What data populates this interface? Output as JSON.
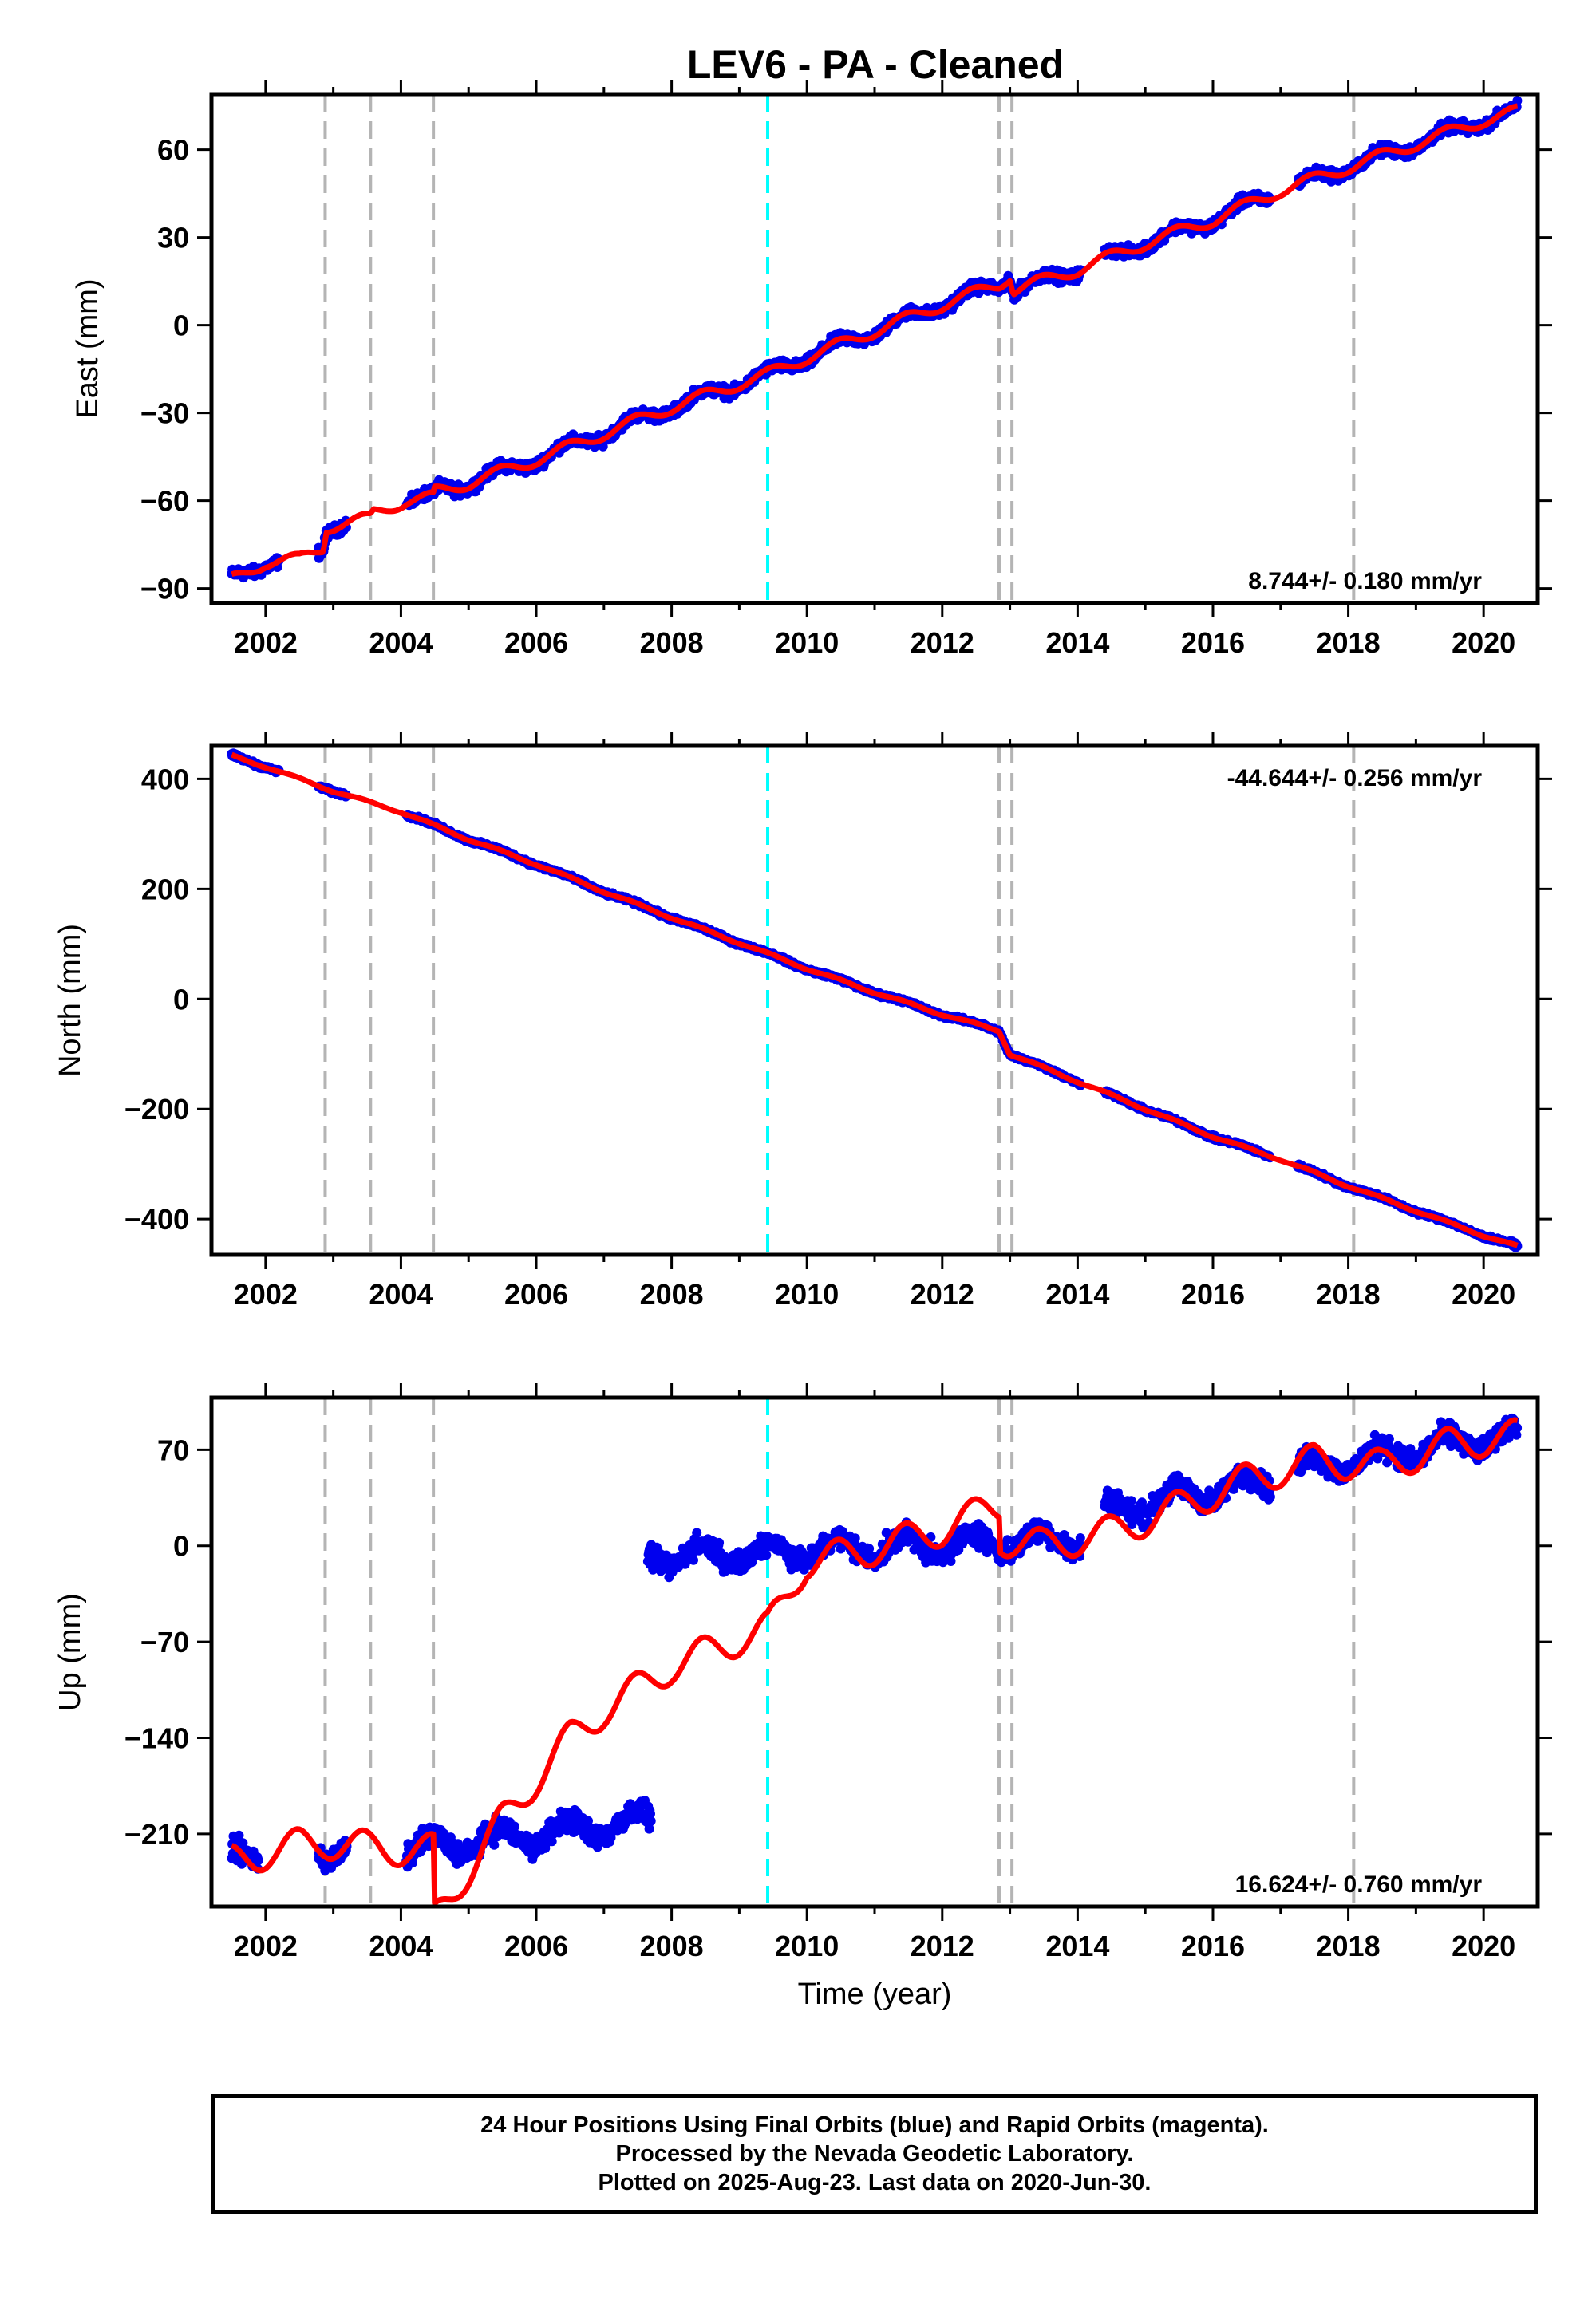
{
  "title": "LEV6  - PA - Cleaned",
  "colors": {
    "final_orbits": "#0000ee",
    "model_fit": "#ff0000",
    "offset_marker": "#b4b4b4",
    "equipment_marker": "#00ffff"
  },
  "chart_data": [
    {
      "type": "scatter",
      "panel": "east",
      "ylabel": "East (mm)",
      "xlabel": "",
      "xlim": [
        2001.2,
        2020.8
      ],
      "ylim": [
        -95,
        79
      ],
      "yticks": [
        -90,
        -60,
        -30,
        0,
        30,
        60
      ],
      "xticks": [
        2002,
        2004,
        2006,
        2008,
        2010,
        2012,
        2014,
        2016,
        2018,
        2020
      ],
      "grid": false,
      "rate_label": "8.744+/- 0.180 mm/yr",
      "rate_position": "bottom-right",
      "vertical_markers_gray": [
        2002.88,
        2003.55,
        2004.48,
        2012.84,
        2013.03,
        2018.08
      ],
      "vertical_markers_cyan": [
        2009.42
      ],
      "data_gaps": [
        [
          2002.2,
          2002.78
        ],
        [
          2003.2,
          2004.08
        ],
        [
          2016.85,
          2017.25
        ],
        [
          2014.05,
          2014.4
        ]
      ],
      "model_curve": [
        [
          2001.5,
          -87
        ],
        [
          2002.0,
          -81
        ],
        [
          2002.5,
          -80
        ],
        [
          2002.85,
          -76
        ],
        [
          2002.9,
          -69
        ],
        [
          2003.55,
          -66
        ],
        [
          2003.6,
          -64
        ],
        [
          2004.1,
          -60
        ],
        [
          2004.48,
          -59
        ],
        [
          2004.5,
          -57
        ],
        [
          2005.0,
          -54
        ],
        [
          2006.0,
          -46
        ],
        [
          2007.0,
          -37
        ],
        [
          2008.0,
          -28
        ],
        [
          2009.0,
          -20
        ],
        [
          2009.4,
          -17
        ],
        [
          2010.0,
          -11
        ],
        [
          2011.0,
          -2
        ],
        [
          2012.0,
          7
        ],
        [
          2012.84,
          14
        ],
        [
          2013.0,
          17
        ],
        [
          2013.05,
          12
        ],
        [
          2014.0,
          19
        ],
        [
          2015.0,
          28
        ],
        [
          2016.0,
          36
        ],
        [
          2017.0,
          46
        ],
        [
          2018.0,
          54
        ],
        [
          2019.0,
          62
        ],
        [
          2020.0,
          70
        ],
        [
          2020.5,
          73
        ]
      ],
      "seasonal_amplitude": 2.0
    },
    {
      "type": "scatter",
      "panel": "north",
      "ylabel": "North (mm)",
      "xlabel": "",
      "xlim": [
        2001.2,
        2020.8
      ],
      "ylim": [
        -465,
        460
      ],
      "yticks": [
        -400,
        -200,
        0,
        200,
        400
      ],
      "xticks": [
        2002,
        2004,
        2006,
        2008,
        2010,
        2012,
        2014,
        2016,
        2018,
        2020
      ],
      "grid": false,
      "rate_label": "-44.644+/- 0.256 mm/yr",
      "rate_position": "top-right",
      "vertical_markers_gray": [
        2002.88,
        2003.55,
        2004.48,
        2012.84,
        2013.03,
        2018.08
      ],
      "vertical_markers_cyan": [
        2009.42
      ],
      "data_gaps": [
        [
          2002.2,
          2002.78
        ],
        [
          2003.2,
          2004.08
        ],
        [
          2016.85,
          2017.25
        ],
        [
          2014.05,
          2014.4
        ]
      ],
      "model_curve": [
        [
          2001.5,
          442
        ],
        [
          2002.0,
          422
        ],
        [
          2003.0,
          378
        ],
        [
          2004.0,
          340
        ],
        [
          2005.0,
          290
        ],
        [
          2006.0,
          245
        ],
        [
          2007.0,
          195
        ],
        [
          2008.0,
          148
        ],
        [
          2009.0,
          102
        ],
        [
          2010.0,
          55
        ],
        [
          2011.0,
          12
        ],
        [
          2012.0,
          -28
        ],
        [
          2012.84,
          -58
        ],
        [
          2013.0,
          -100
        ],
        [
          2014.0,
          -150
        ],
        [
          2015.0,
          -200
        ],
        [
          2016.0,
          -250
        ],
        [
          2017.0,
          -292
        ],
        [
          2018.0,
          -340
        ],
        [
          2019.0,
          -385
        ],
        [
          2020.0,
          -430
        ],
        [
          2020.5,
          -450
        ]
      ],
      "seasonal_amplitude": 2.0
    },
    {
      "type": "scatter",
      "panel": "up",
      "ylabel": "Up (mm)",
      "xlabel": "Time (year)",
      "xlim": [
        2001.2,
        2020.8
      ],
      "ylim": [
        -263,
        108
      ],
      "yticks": [
        -210,
        -140,
        -70,
        0,
        70
      ],
      "xticks": [
        2002,
        2004,
        2006,
        2008,
        2010,
        2012,
        2014,
        2016,
        2018,
        2020
      ],
      "grid": false,
      "rate_label": "16.624+/- 0.760 mm/yr",
      "rate_position": "bottom-right",
      "vertical_markers_gray": [
        2002.88,
        2003.55,
        2004.48,
        2012.84,
        2013.03,
        2018.08
      ],
      "vertical_markers_cyan": [
        2009.42
      ],
      "data_segments": [
        {
          "x0": 2001.5,
          "x1": 2001.9,
          "y0": -228,
          "y1": -222
        },
        {
          "x0": 2002.78,
          "x1": 2003.2,
          "y0": -222,
          "y1": -220
        },
        {
          "x0": 2004.08,
          "x1": 2007.7,
          "y0": -222,
          "y1": -200
        },
        {
          "x0": 2007.65,
          "x1": 2014.05,
          "y0": -8,
          "y1": 5
        },
        {
          "x0": 2014.4,
          "x1": 2016.85,
          "y0": 25,
          "y1": 48
        },
        {
          "x0": 2017.25,
          "x1": 2020.5,
          "y0": 55,
          "y1": 82
        }
      ],
      "up_data_noise": 7,
      "model_curve": [
        [
          2001.5,
          -230
        ],
        [
          2002.5,
          -218
        ],
        [
          2002.88,
          -216
        ],
        [
          2003.55,
          -220
        ],
        [
          2004.3,
          -222
        ],
        [
          2004.48,
          -222
        ],
        [
          2004.5,
          -272
        ],
        [
          2005.5,
          -200
        ],
        [
          2006.5,
          -140
        ],
        [
          2007.0,
          -120
        ],
        [
          2008.0,
          -88
        ],
        [
          2009.0,
          -68
        ],
        [
          2009.42,
          -60
        ],
        [
          2010.0,
          -12
        ],
        [
          2011.0,
          -2
        ],
        [
          2012.0,
          12
        ],
        [
          2012.84,
          30
        ],
        [
          2012.86,
          5
        ],
        [
          2013.5,
          0
        ],
        [
          2014.5,
          10
        ],
        [
          2015.5,
          28
        ],
        [
          2016.5,
          48
        ],
        [
          2017.5,
          62
        ],
        [
          2018.08,
          60
        ],
        [
          2018.5,
          58
        ],
        [
          2019.5,
          74
        ],
        [
          2020.5,
          80
        ]
      ],
      "seasonal_amplitude": 12.0
    }
  ],
  "footer": {
    "line1": "24 Hour Positions Using Final Orbits (blue) and Rapid Orbits (magenta).",
    "line2": "Processed by the Nevada Geodetic Laboratory.",
    "line3": "Plotted on 2025-Aug-23. Last data on 2020-Jun-30."
  }
}
